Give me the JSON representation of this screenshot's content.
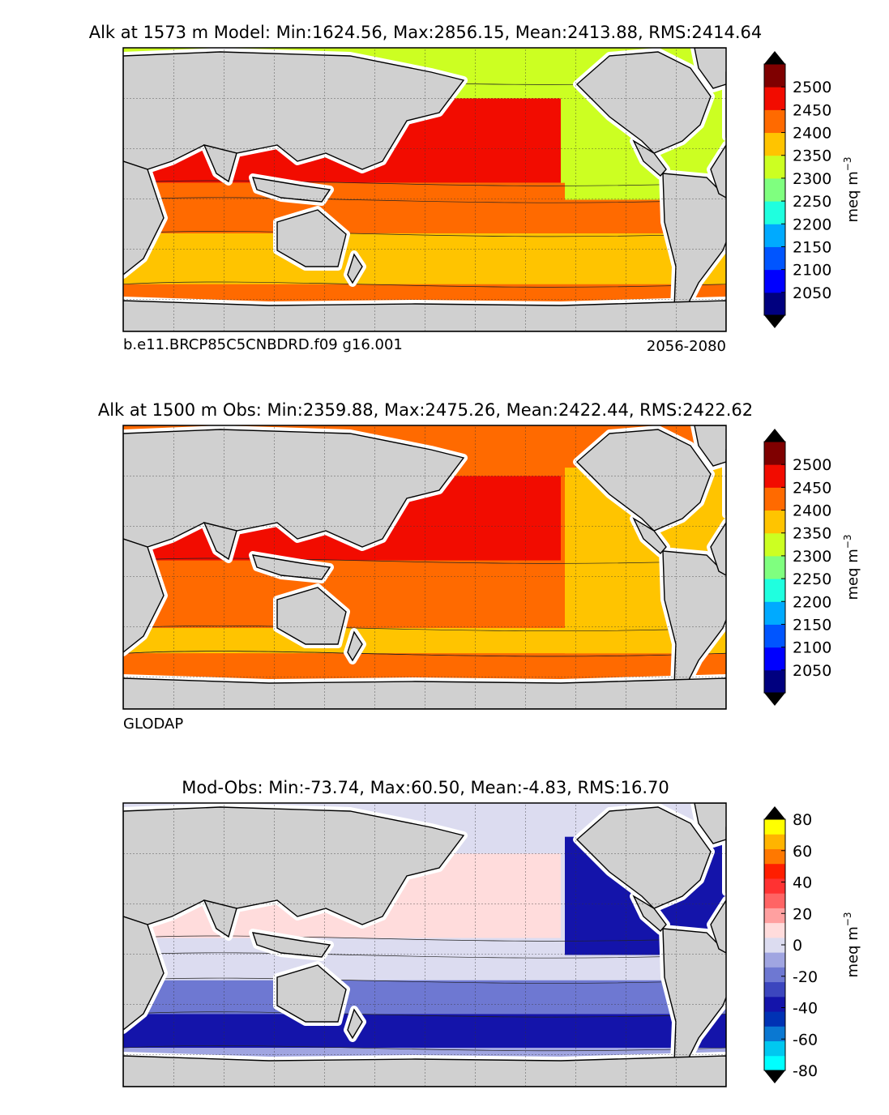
{
  "chart_data": [
    {
      "type": "heatmap",
      "title": "Alk at 1573 m Model: Min:1624.56, Max:2856.15, Mean:2413.88, RMS:2414.64",
      "caption_left": "b.e11.BRCP85C5CNBDRD.f09 g16.001",
      "caption_right": "2056-2080",
      "colorbar": {
        "label": "meq m",
        "label_sup": "−3",
        "bounds": [
          2000,
          2050,
          2100,
          2150,
          2200,
          2250,
          2300,
          2350,
          2400,
          2450,
          2500,
          2550
        ],
        "ticks": [
          "2050",
          "2100",
          "2150",
          "2200",
          "2250",
          "2300",
          "2350",
          "2400",
          "2450",
          "2500"
        ],
        "colors": [
          "#00007f",
          "#0000ff",
          "#0055ff",
          "#00aaff",
          "#1fffdf",
          "#7fff7f",
          "#ccff22",
          "#ffc400",
          "#ff6a00",
          "#f20c00",
          "#7f0000"
        ],
        "under_color": "#000000",
        "over_color": "#000000"
      },
      "field_bands": [
        {
          "lat_range": [
            70,
            90
          ],
          "value": 2330
        },
        {
          "lat_range": [
            10,
            60
          ],
          "value": 2470,
          "region": "north-pacific-indian"
        },
        {
          "lat_range": [
            -20,
            10
          ],
          "value": 2420
        },
        {
          "lat_range": [
            -50,
            -20
          ],
          "value": 2380
        },
        {
          "lat_range": [
            -75,
            -50
          ],
          "value": 2410
        },
        {
          "lat_range": [
            0,
            60
          ],
          "value": 2340,
          "region": "north-atlantic"
        }
      ]
    },
    {
      "type": "heatmap",
      "title": "Alk at 1500 m Obs: Min:2359.88, Max:2475.26, Mean:2422.44, RMS:2422.62",
      "caption_left": "GLODAP",
      "caption_right": "",
      "colorbar": {
        "label": "meq m",
        "label_sup": "−3",
        "bounds": [
          2000,
          2050,
          2100,
          2150,
          2200,
          2250,
          2300,
          2350,
          2400,
          2450,
          2500,
          2550
        ],
        "ticks": [
          "2050",
          "2100",
          "2150",
          "2200",
          "2250",
          "2300",
          "2350",
          "2400",
          "2450",
          "2500"
        ],
        "colors": [
          "#00007f",
          "#0000ff",
          "#0055ff",
          "#00aaff",
          "#1fffdf",
          "#7fff7f",
          "#ccff22",
          "#ffc400",
          "#ff6a00",
          "#f20c00",
          "#7f0000"
        ],
        "under_color": "#000000",
        "over_color": "#000000"
      },
      "field_bands": [
        {
          "lat_range": [
            10,
            60
          ],
          "value": 2465,
          "region": "north-pacific"
        },
        {
          "lat_range": [
            -30,
            10
          ],
          "value": 2430
        },
        {
          "lat_range": [
            -45,
            -30
          ],
          "value": 2390
        },
        {
          "lat_range": [
            -65,
            -45
          ],
          "value": 2420
        },
        {
          "lat_range": [
            -45,
            65
          ],
          "value": 2380,
          "region": "atlantic"
        }
      ]
    },
    {
      "type": "heatmap",
      "title": "Mod-Obs: Min:-73.74, Max:60.50, Mean:-4.83, RMS:16.70",
      "caption_left": "",
      "caption_right": "",
      "colorbar": {
        "label": "meq m",
        "label_sup": "−3",
        "bounds": [
          -80,
          -70,
          -60,
          -50,
          -40,
          -30,
          -20,
          -10,
          0,
          10,
          20,
          30,
          40,
          50,
          60,
          70,
          80
        ],
        "ticks": [
          "-80",
          "-60",
          "-40",
          "-20",
          "0",
          "20",
          "40",
          "60",
          "80"
        ],
        "colors": [
          "#00ffff",
          "#00c8f0",
          "#0a78d2",
          "#0032b4",
          "#1414aa",
          "#3c46be",
          "#6e78d2",
          "#a0a5e1",
          "#dcdcf0",
          "#ffdcdc",
          "#ffa0a0",
          "#ff6464",
          "#ff3232",
          "#ff1e00",
          "#ff7800",
          "#ffb400",
          "#ffff00"
        ],
        "under_color": "#000000",
        "over_color": "#000000"
      },
      "field_bands": [
        {
          "lat_range": [
            10,
            60
          ],
          "value": 15,
          "region": "north-pacific"
        },
        {
          "lat_range": [
            -15,
            10
          ],
          "value": 5
        },
        {
          "lat_range": [
            -35,
            -15
          ],
          "value": -15
        },
        {
          "lat_range": [
            -55,
            -35
          ],
          "value": -38
        },
        {
          "lat_range": [
            -75,
            -55
          ],
          "value": -5
        },
        {
          "lat_range": [
            0,
            70
          ],
          "value": -35,
          "region": "north-atlantic"
        }
      ]
    }
  ]
}
